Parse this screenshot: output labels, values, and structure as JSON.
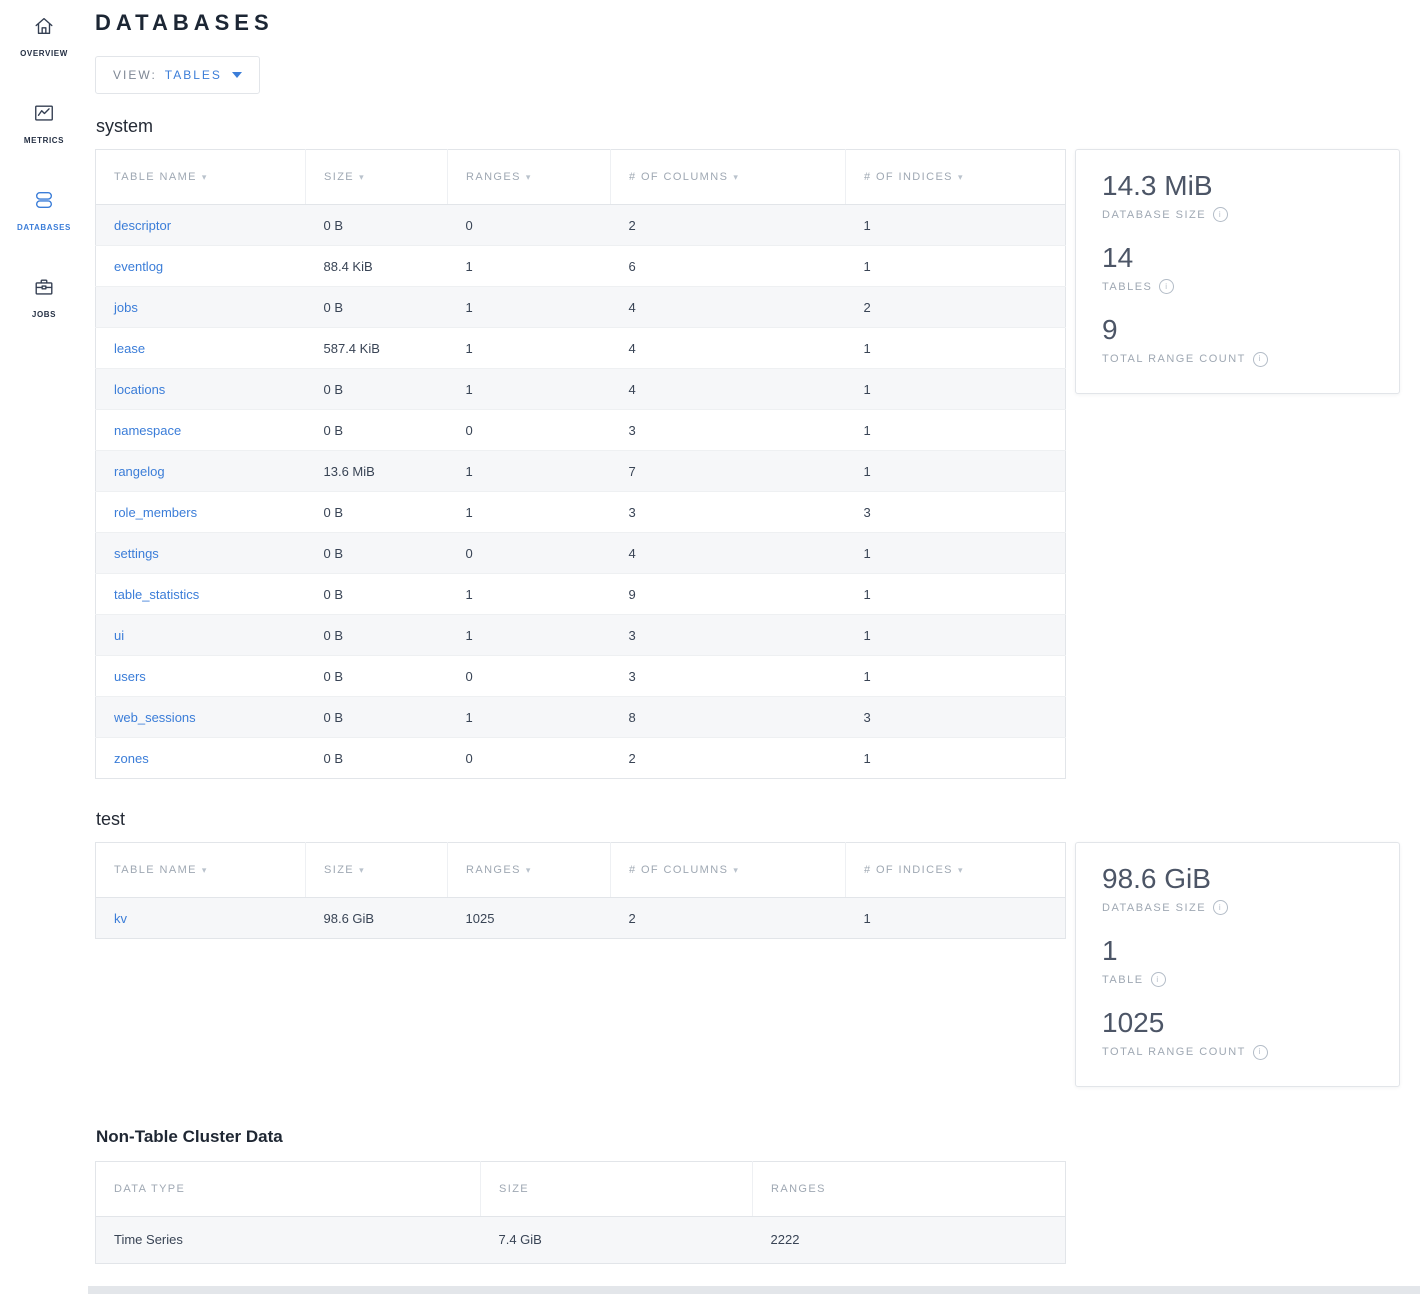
{
  "page_title": "DATABASES",
  "view_selector": {
    "label": "VIEW:",
    "value": "TABLES"
  },
  "sidebar": {
    "items": [
      {
        "id": "overview",
        "label": "OVERVIEW",
        "icon": "home-icon",
        "active": false
      },
      {
        "id": "metrics",
        "label": "METRICS",
        "icon": "metrics-icon",
        "active": false
      },
      {
        "id": "databases",
        "label": "DATABASES",
        "icon": "database-icon",
        "active": true
      },
      {
        "id": "jobs",
        "label": "JOBS",
        "icon": "jobs-icon",
        "active": false
      }
    ]
  },
  "databases": [
    {
      "name": "system",
      "columns": [
        "TABLE NAME",
        "SIZE",
        "RANGES",
        "# OF COLUMNS",
        "# OF INDICES"
      ],
      "rows": [
        [
          "descriptor",
          "0 B",
          "0",
          "2",
          "1"
        ],
        [
          "eventlog",
          "88.4 KiB",
          "1",
          "6",
          "1"
        ],
        [
          "jobs",
          "0 B",
          "1",
          "4",
          "2"
        ],
        [
          "lease",
          "587.4 KiB",
          "1",
          "4",
          "1"
        ],
        [
          "locations",
          "0 B",
          "1",
          "4",
          "1"
        ],
        [
          "namespace",
          "0 B",
          "0",
          "3",
          "1"
        ],
        [
          "rangelog",
          "13.6 MiB",
          "1",
          "7",
          "1"
        ],
        [
          "role_members",
          "0 B",
          "1",
          "3",
          "3"
        ],
        [
          "settings",
          "0 B",
          "0",
          "4",
          "1"
        ],
        [
          "table_statistics",
          "0 B",
          "1",
          "9",
          "1"
        ],
        [
          "ui",
          "0 B",
          "1",
          "3",
          "1"
        ],
        [
          "users",
          "0 B",
          "0",
          "3",
          "1"
        ],
        [
          "web_sessions",
          "0 B",
          "1",
          "8",
          "3"
        ],
        [
          "zones",
          "0 B",
          "0",
          "2",
          "1"
        ]
      ],
      "summary": [
        {
          "value": "14.3 MiB",
          "label": "DATABASE SIZE"
        },
        {
          "value": "14",
          "label": "TABLES"
        },
        {
          "value": "9",
          "label": "TOTAL RANGE COUNT"
        }
      ]
    },
    {
      "name": "test",
      "columns": [
        "TABLE NAME",
        "SIZE",
        "RANGES",
        "# OF COLUMNS",
        "# OF INDICES"
      ],
      "rows": [
        [
          "kv",
          "98.6 GiB",
          "1025",
          "2",
          "1"
        ]
      ],
      "summary": [
        {
          "value": "98.6 GiB",
          "label": "DATABASE SIZE"
        },
        {
          "value": "1",
          "label": "TABLE"
        },
        {
          "value": "1025",
          "label": "TOTAL RANGE COUNT"
        }
      ]
    }
  ],
  "non_table": {
    "title": "Non-Table Cluster Data",
    "columns": [
      "DATA TYPE",
      "SIZE",
      "RANGES"
    ],
    "rows": [
      [
        "Time Series",
        "7.4 GiB",
        "2222"
      ]
    ]
  },
  "colors": {
    "accent_blue": "#3b7dd8",
    "row_alt_bg": "#f6f7f9",
    "border": "#e2e5e9",
    "muted_text": "#9fa8b3",
    "dark_text": "#242a35"
  }
}
